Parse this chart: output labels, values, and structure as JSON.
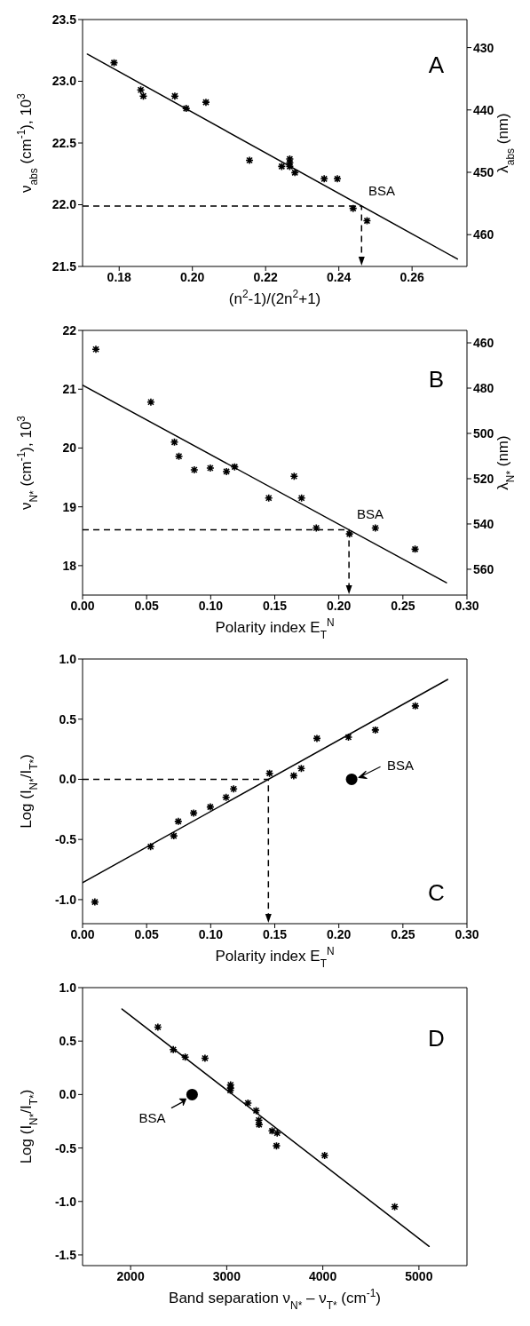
{
  "chart_data": [
    {
      "type": "scatter",
      "xlabel": "(n$^{2}$-1)/(2n$^{2}$+1)",
      "ylabel": "ν$_{abs}$ (cm$^{-1}$), 10$^{3}$",
      "y2label": "λ$_{abs}$ (nm)",
      "xlim": [
        0.17,
        0.275
      ],
      "xticks": [
        0.18,
        {
          "value": 0.2,
          "label": "0.20"
        },
        0.22,
        0.24,
        0.26
      ],
      "ylim": [
        21.5,
        23.5
      ],
      "yticks": [
        21.5,
        {
          "value": 22,
          "label": "22.0"
        },
        22.5,
        {
          "value": 23,
          "label": "23.0"
        },
        23.5
      ],
      "y2lim": [
        465.1,
        425.5
      ],
      "y2ticks": [
        430,
        440,
        450,
        460
      ],
      "annotations": [
        "A",
        {
          "text": "BSA",
          "x": 0.2466,
          "y": 21.99
        }
      ],
      "series": [
        {
          "marker": "cross",
          "color": "#000000",
          "x": [
            0.1786,
            0.1859,
            0.1866,
            0.1952,
            0.1983,
            0.2037,
            0.2156,
            0.2244,
            0.2266,
            0.2266,
            0.2266,
            0.228,
            0.236,
            0.2396,
            0.2439,
            0.2477
          ],
          "values": [
            23.15,
            22.93,
            22.88,
            22.88,
            22.78,
            22.83,
            22.36,
            22.31,
            22.37,
            22.34,
            22.31,
            22.26,
            22.21,
            22.21,
            21.97,
            21.87
          ]
        },
        {
          "type": "line",
          "marker": "none",
          "color": "#000000",
          "x": [
            0.1713,
            0.2724
          ],
          "values": [
            23.22,
            21.56
          ]
        }
      ]
    },
    {
      "type": "scatter",
      "xlabel": "Polarity index E$_{T}$$^{N}$",
      "ylabel": "ν$_{N*}$ (cm$^{-1}$), 10$^{3}$",
      "y2label": "λ$_{N*}$ (nm)",
      "xlim": [
        0,
        0.3
      ],
      "xticks": [
        {
          "value": 0,
          "label": "0.00"
        },
        0.05,
        {
          "value": 0.1,
          "label": "0.10"
        },
        0.15,
        {
          "value": 0.2,
          "label": "0.20"
        },
        0.25,
        {
          "value": 0.3,
          "label": "0.30"
        }
      ],
      "ylim": [
        17.5,
        22
      ],
      "yticks": [
        18,
        19,
        20,
        21,
        22
      ],
      "y2lim": [
        571.4,
        454.5
      ],
      "y2ticks": [
        460,
        480,
        500,
        520,
        540,
        560
      ],
      "annotations": [
        "B",
        {
          "text": "BSA",
          "x": 0.21,
          "y": 18.61
        }
      ],
      "series": [
        {
          "marker": "cross",
          "color": "#000000",
          "x": [
            0.0104,
            0.0533,
            0.0717,
            0.0752,
            0.0872,
            0.0997,
            0.1123,
            0.1187,
            0.1453,
            0.1651,
            0.1709,
            0.1824,
            0.2083,
            0.2285,
            0.2595
          ],
          "values": [
            21.68,
            20.78,
            20.1,
            19.86,
            19.63,
            19.66,
            19.6,
            19.68,
            19.15,
            19.52,
            19.15,
            18.64,
            18.54,
            18.64,
            18.28
          ]
        },
        {
          "type": "line",
          "marker": "none",
          "color": "#000000",
          "x": [
            0,
            0.284
          ],
          "values": [
            21.07,
            17.71
          ]
        }
      ]
    },
    {
      "type": "scatter",
      "xlabel": "Polarity index E$_{T}$$^{N}$",
      "ylabel": "Log (I$_{N*}$/I$_{T*}$)",
      "xlim": [
        0,
        0.3
      ],
      "xticks": [
        {
          "value": 0,
          "label": "0.00"
        },
        0.05,
        {
          "value": 0.1,
          "label": "0.10"
        },
        0.15,
        {
          "value": 0.2,
          "label": "0.20"
        },
        0.25,
        {
          "value": 0.3,
          "label": "0.30"
        }
      ],
      "ylim": [
        -1.2,
        1
      ],
      "yticks": [
        {
          "value": -1,
          "label": "-1.0"
        },
        -0.5,
        {
          "value": 0,
          "label": "0.0"
        },
        0.5,
        {
          "value": 1,
          "label": "1.0"
        }
      ],
      "annotations": [
        "C",
        {
          "text": "BSA",
          "x": 0.21,
          "y": 0.0
        }
      ],
      "series": [
        {
          "marker": "cross",
          "color": "#000000",
          "x": [
            0.0096,
            0.0531,
            0.0712,
            0.0747,
            0.0867,
            0.0997,
            0.112,
            0.1179,
            0.1459,
            0.1648,
            0.1707,
            0.1829,
            0.2075,
            0.2285,
            0.2597
          ],
          "values": [
            -1.02,
            -0.56,
            -0.47,
            -0.35,
            -0.28,
            -0.23,
            -0.15,
            -0.08,
            0.05,
            0.03,
            0.09,
            0.34,
            0.35,
            0.41,
            0.61
          ]
        },
        {
          "marker": "circle",
          "color": "#000000",
          "x": [
            0.21
          ],
          "values": [
            0.0
          ]
        },
        {
          "type": "line",
          "marker": "none",
          "color": "#000000",
          "x": [
            0,
            0.285
          ],
          "values": [
            -0.86,
            0.83
          ]
        }
      ]
    },
    {
      "type": "scatter",
      "xlabel": "Band separation ν$_{N*}$ – ν$_{T*}$ (cm$^{-1}$)",
      "ylabel": "Log (I$_{N*}$/I$_{T*}$)",
      "xlim": [
        1500,
        5500
      ],
      "xticks": [
        2000,
        3000,
        4000,
        5000
      ],
      "ylim": [
        -1.6,
        1
      ],
      "yticks": [
        -1.5,
        {
          "value": -1,
          "label": "-1.0"
        },
        -0.5,
        {
          "value": 0,
          "label": "0.0"
        },
        0.5,
        {
          "value": 1,
          "label": "1.0"
        }
      ],
      "annotations": [
        "D",
        {
          "text": "BSA",
          "x": 2640,
          "y": 0.0
        }
      ],
      "series": [
        {
          "marker": "cross",
          "color": "#000000",
          "x": [
            2284,
            2444,
            2568,
            2774,
            3040,
            3040,
            3037,
            3221,
            3306,
            3334,
            3337,
            3472,
            3525,
            3518,
            4019,
            4748
          ],
          "values": [
            0.63,
            0.42,
            0.35,
            0.34,
            0.09,
            0.06,
            0.04,
            -0.08,
            -0.15,
            -0.24,
            -0.28,
            -0.34,
            -0.36,
            -0.48,
            -0.57,
            -1.05
          ]
        },
        {
          "marker": "circle",
          "color": "#000000",
          "x": [
            2640
          ],
          "values": [
            0.0
          ]
        },
        {
          "type": "line",
          "marker": "none",
          "color": "#000000",
          "x": [
            1910,
            5106
          ],
          "values": [
            0.8,
            -1.42
          ]
        }
      ]
    }
  ]
}
